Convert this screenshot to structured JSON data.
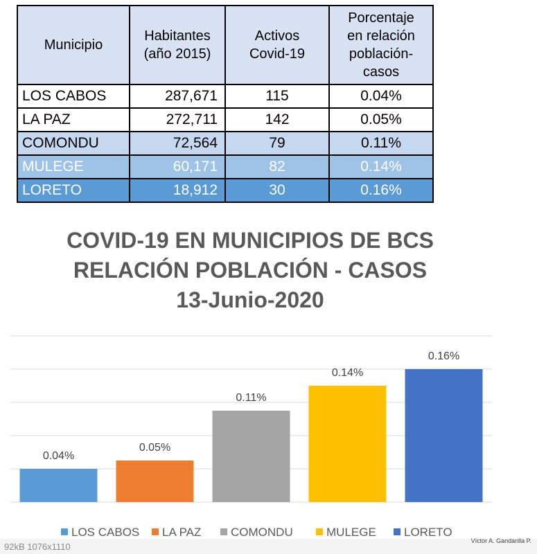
{
  "table": {
    "headers": [
      "Municipio",
      "Habitantes\n(año 2015)",
      "Activos\nCovid-19",
      "Porcentaje\nen relación\npoblación-\ncasos"
    ],
    "rows": [
      {
        "municipio": "LOS CABOS",
        "habitantes": "287,671",
        "activos": "115",
        "porcentaje": "0.04%",
        "bg": "#ffffff",
        "color": "#000000"
      },
      {
        "municipio": "LA PAZ",
        "habitantes": "272,711",
        "activos": "142",
        "porcentaje": "0.05%",
        "bg": "#ffffff",
        "color": "#000000"
      },
      {
        "municipio": "COMONDU",
        "habitantes": "72,564",
        "activos": "79",
        "porcentaje": "0.11%",
        "bg": "#c5d8ef",
        "color": "#000000"
      },
      {
        "municipio": "MULEGE",
        "habitantes": "60,171",
        "activos": "82",
        "porcentaje": "0.14%",
        "bg": "#9fc2e7",
        "color": "#ffffff"
      },
      {
        "municipio": "LORETO",
        "habitantes": "18,912",
        "activos": "30",
        "porcentaje": "0.16%",
        "bg": "#5b9bd5",
        "color": "#ffffff"
      }
    ]
  },
  "chart_data": {
    "type": "bar",
    "title": "COVID-19 EN MUNICIPIOS DE BCS\nRELACIÓN POBLACIÓN - CASOS\n13-Junio-2020",
    "categories": [
      "LOS CABOS",
      "LA PAZ",
      "COMONDU",
      "MULEGE",
      "LORETO"
    ],
    "values": [
      0.04,
      0.05,
      0.11,
      0.14,
      0.16
    ],
    "data_labels": [
      "0.04%",
      "0.05%",
      "0.11%",
      "0.14%",
      "0.16%"
    ],
    "colors": [
      "#5b9bd5",
      "#ed7d31",
      "#a5a5a5",
      "#ffc000",
      "#4472c4"
    ],
    "ylim": [
      0,
      0.2
    ],
    "grid": true,
    "legend": "bottom",
    "xlabel": "",
    "ylabel": ""
  },
  "credit": "Víctor A. Gandarilla P.",
  "image_info": "92kB  1076x1110"
}
